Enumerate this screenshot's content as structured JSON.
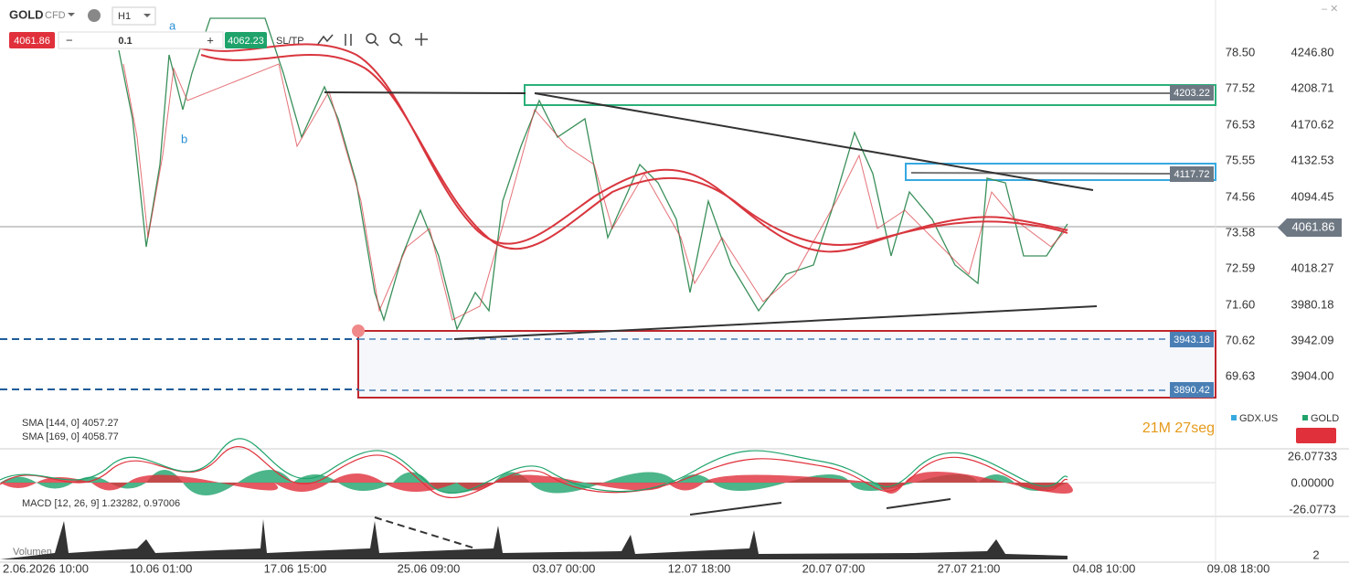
{
  "toolbar": {
    "symbol": "GOLD",
    "symbol_type": "CFD",
    "timeframe": "H1",
    "sell_price": "4061.86",
    "volume": "0.1",
    "buy_price": "4062.23",
    "sltp": "SL/TP"
  },
  "annotations": [
    "a",
    "b"
  ],
  "price_axis": {
    "left_labels": [
      "78.50",
      "77.52",
      "76.53",
      "75.55",
      "74.56",
      "73.58",
      "72.59",
      "71.60",
      "70.62",
      "69.63"
    ],
    "right_labels": [
      "4246.80",
      "4208.71",
      "4170.62",
      "4132.53",
      "4094.45",
      "4018.27",
      "3980.18",
      "3942.09",
      "3904.00"
    ],
    "current_price": "4061.86"
  },
  "level_tags": [
    "4203.22",
    "4117.72",
    "3943.18",
    "3890.42"
  ],
  "indicators": {
    "sma_144": "SMA [144, 0] 4057.27",
    "sma_169": "SMA [169, 0] 4058.77",
    "macd": "MACD [12, 26, 9] 1.23282, 0.97006",
    "volume": "Volumen"
  },
  "legend": {
    "items": [
      "GDX.US",
      "GOLD"
    ],
    "timer": "21M 27seg"
  },
  "macd_axis": [
    "26.07733",
    "0.00000",
    "-26.0773"
  ],
  "volume_axis": [
    "2"
  ],
  "time_axis": [
    "2.06.2026 10:00",
    "10.06 01:00",
    "17.06 15:00",
    "25.06 09:00",
    "03.07 00:00",
    "12.07 18:00",
    "20.07 07:00",
    "27.07 21:00",
    "04.08 10:00",
    "09.08 18:00"
  ]
}
